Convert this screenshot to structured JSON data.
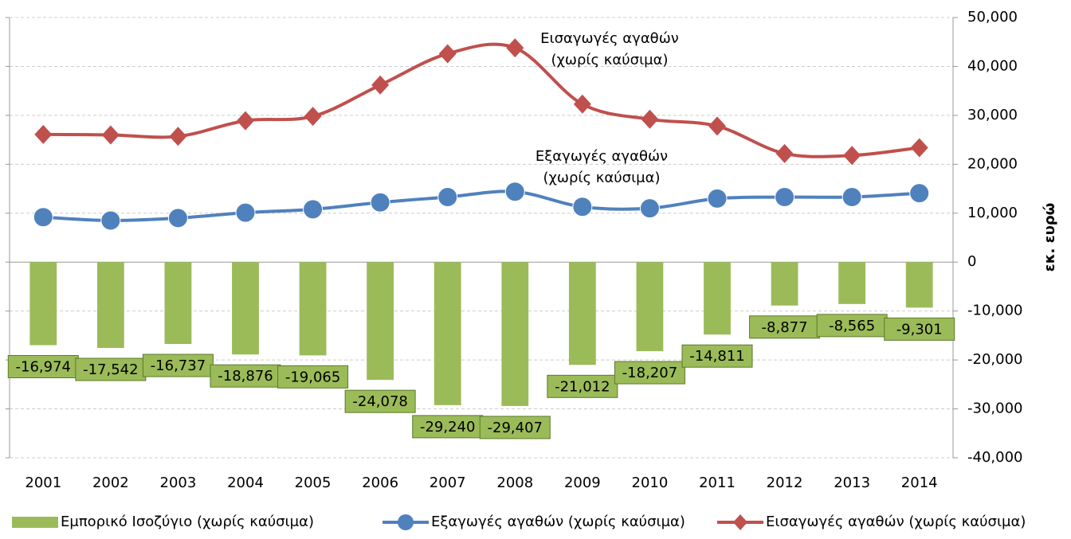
{
  "chart_data": {
    "type": "bar-line",
    "categories": [
      "2001",
      "2002",
      "2003",
      "2004",
      "2005",
      "2006",
      "2007",
      "2008",
      "2009",
      "2010",
      "2011",
      "2012",
      "2013",
      "2014"
    ],
    "series": [
      {
        "name": "Εμπορικό Ισοζύγιο (χωρίς καύσιμα)",
        "type": "bar",
        "color": "#9bbb59",
        "values": [
          -16974,
          -17542,
          -16737,
          -18876,
          -19065,
          -24078,
          -29240,
          -29407,
          -21012,
          -18207,
          -14811,
          -8877,
          -8565,
          -9301
        ],
        "value_labels": [
          "-16,974",
          "-17,542",
          "-16,737",
          "-18,876",
          "-19,065",
          "-24,078",
          "-29,240",
          "-29,407",
          "-21,012",
          "-18,207",
          "-14,811",
          "-8,877",
          "-8,565",
          "-9,301"
        ]
      },
      {
        "name": "Εξαγωγές αγαθών (χωρίς καύσιμα)",
        "type": "line",
        "marker": "circle",
        "color": "#4f81bd",
        "values": [
          9200,
          8500,
          9000,
          10100,
          10800,
          12200,
          13300,
          14400,
          11300,
          11000,
          13000,
          13300,
          13300,
          14100
        ]
      },
      {
        "name": "Εισαγωγές αγαθών (χωρίς καύσιμα)",
        "type": "line",
        "marker": "diamond",
        "color": "#c0504d",
        "values": [
          26100,
          26000,
          25700,
          28900,
          29800,
          36200,
          42600,
          43800,
          32300,
          29200,
          27800,
          22200,
          21800,
          23400
        ]
      }
    ],
    "ylabel": "εκ. ευρώ",
    "ylim": [
      -40000,
      50000
    ],
    "yticks": [
      {
        "value": -40000,
        "label": "-40,000"
      },
      {
        "value": -30000,
        "label": "-30,000"
      },
      {
        "value": -20000,
        "label": "-20,000"
      },
      {
        "value": -10000,
        "label": "-10,000"
      },
      0,
      {
        "value": 10000,
        "label": "10,000"
      },
      {
        "value": 20000,
        "label": "20,000"
      },
      {
        "value": 30000,
        "label": "30,000"
      },
      {
        "value": 40000,
        "label": "40,000"
      },
      {
        "value": 50000,
        "label": "50,000"
      }
    ],
    "annotations": [
      [
        "Εισαγωγές αγαθών",
        "(χωρίς καύσιμα)"
      ],
      [
        "Εξαγωγές αγαθών",
        "(χωρίς καύσιμα)"
      ]
    ],
    "grid": true,
    "legend": "bottom"
  }
}
